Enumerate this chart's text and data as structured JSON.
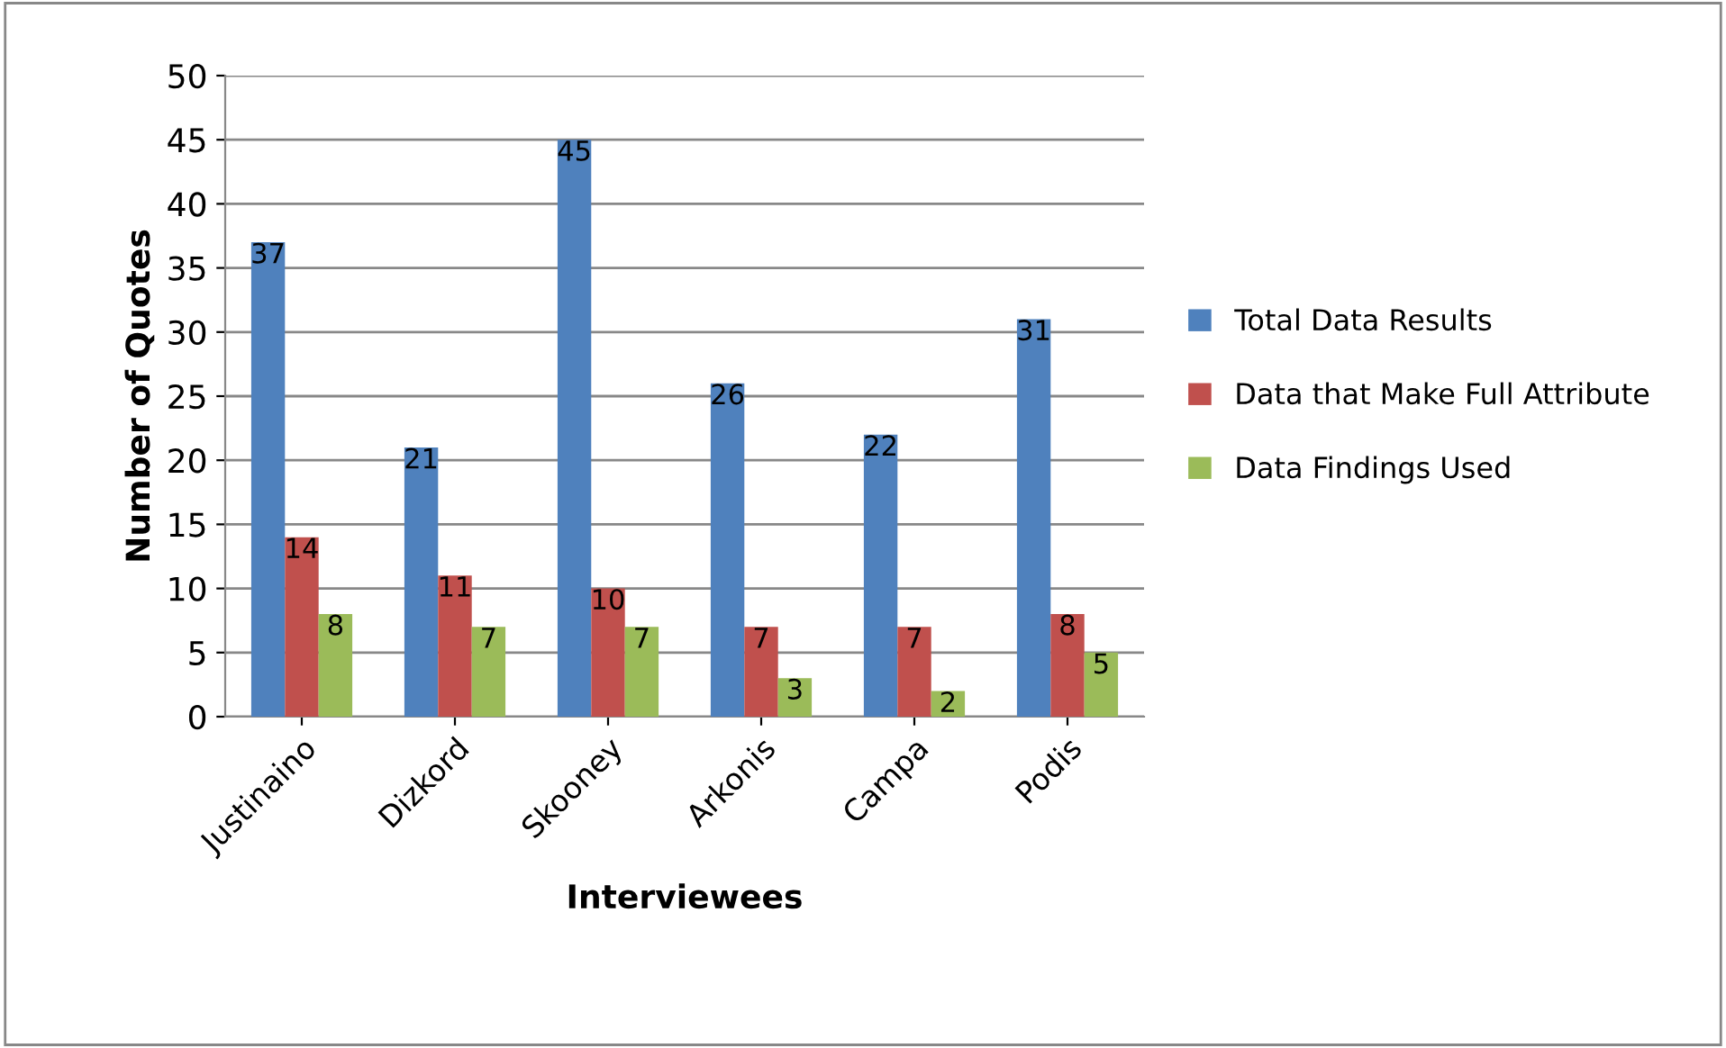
{
  "chart_data": {
    "type": "bar",
    "xlabel": "Interviewees",
    "ylabel": "Number of Quotes",
    "categories": [
      "Justinaino",
      "Dizkord",
      "Skooney",
      "Arkonis",
      "Campa",
      "Podis"
    ],
    "series": [
      {
        "name": "Total Data Results",
        "color": "#4f81bd",
        "values": [
          37,
          21,
          45,
          26,
          22,
          31
        ]
      },
      {
        "name": "Data that Make Full Attribute",
        "color": "#c0504d",
        "values": [
          14,
          11,
          10,
          7,
          7,
          8
        ]
      },
      {
        "name": "Data Findings Used",
        "color": "#9bbb59",
        "values": [
          8,
          7,
          7,
          3,
          2,
          5
        ]
      }
    ],
    "ylim": [
      0,
      50
    ],
    "yticks": [
      0,
      5,
      10,
      15,
      20,
      25,
      30,
      35,
      40,
      45,
      50
    ],
    "grid": "y",
    "legend": "right",
    "data_labels": true
  }
}
